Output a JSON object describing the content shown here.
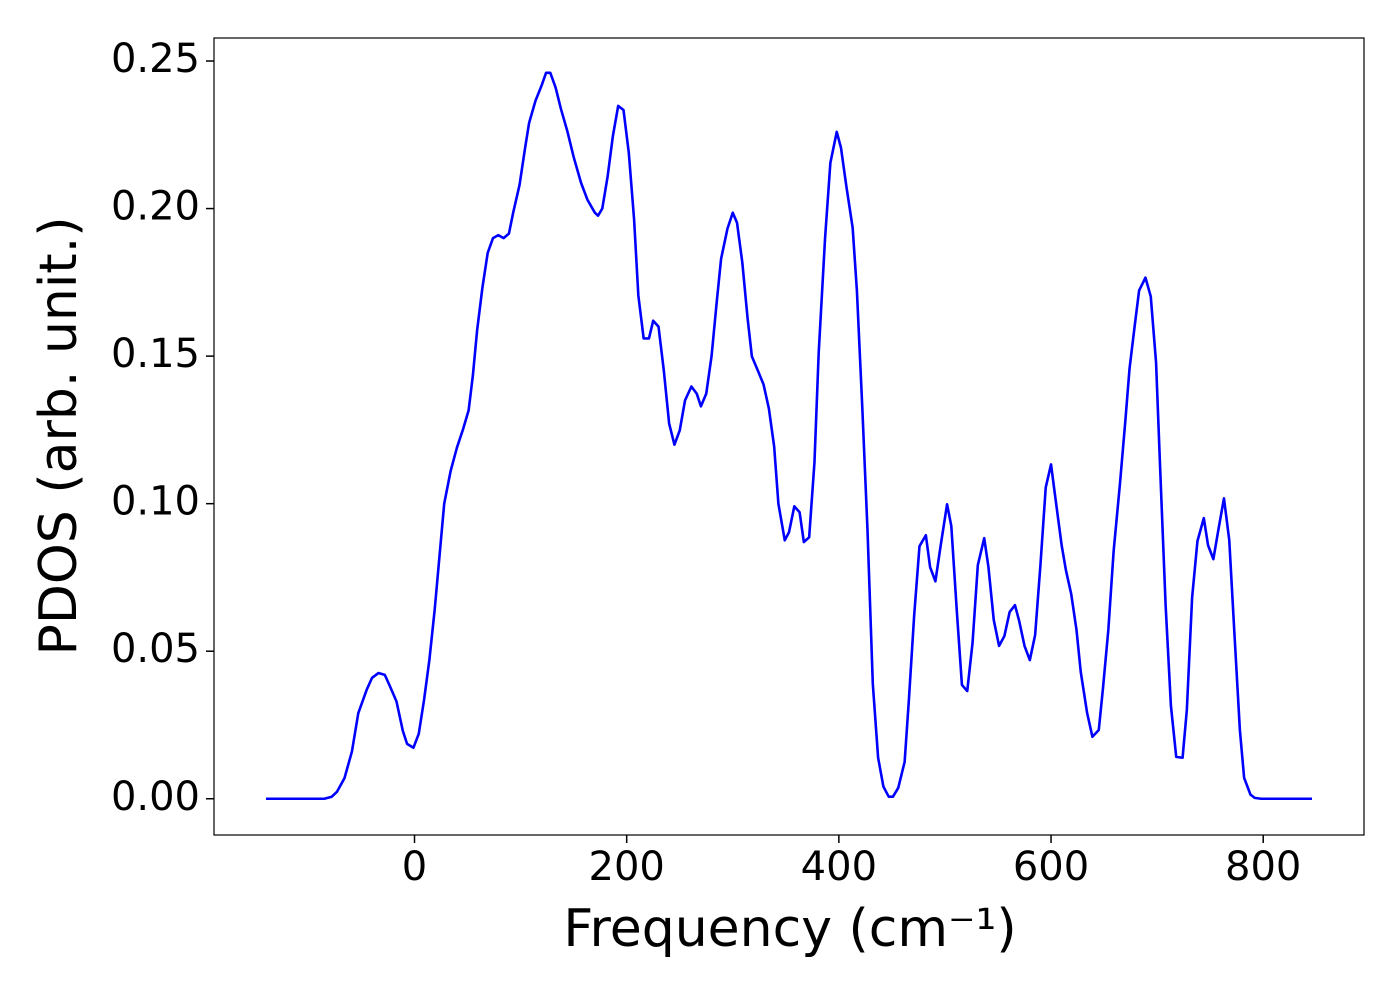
{
  "chart_data": {
    "type": "line",
    "xlabel": "Frequency (cm⁻¹)",
    "ylabel": "PDOS (arb. unit.)",
    "x": [
      -140,
      -120,
      -100,
      -85,
      -78,
      -73,
      -66,
      -59,
      -53,
      -45,
      -40,
      -34,
      -28,
      -23,
      -17,
      -11,
      -7,
      -1,
      4,
      9,
      14,
      19,
      24,
      28,
      34,
      40,
      46,
      51,
      55,
      59,
      64,
      69,
      74,
      79,
      84,
      89,
      93,
      99,
      104,
      108,
      114,
      120,
      124,
      128,
      133,
      138,
      144,
      150,
      157,
      163,
      170,
      173,
      177,
      182,
      187,
      192,
      197,
      202,
      207,
      211,
      216,
      221,
      225,
      230,
      235,
      240,
      245,
      250,
      255,
      261,
      266,
      270,
      275,
      280,
      285,
      289,
      295,
      300,
      304,
      309,
      314,
      318,
      324,
      329,
      334,
      339,
      343,
      349,
      353,
      358,
      363,
      367,
      372,
      377,
      381,
      387,
      392,
      398,
      402,
      407,
      413,
      417,
      422,
      427,
      432,
      437,
      442,
      447,
      451,
      456,
      462,
      466,
      471,
      476,
      482,
      486,
      491,
      496,
      502,
      506,
      511,
      516,
      521,
      526,
      531,
      537,
      541,
      546,
      551,
      556,
      561,
      566,
      570,
      575,
      580,
      585,
      590,
      595,
      600,
      604,
      610,
      614,
      619,
      624,
      628,
      634,
      639,
      645,
      649,
      654,
      659,
      665,
      670,
      674,
      679,
      683,
      689,
      694,
      699,
      703,
      708,
      713,
      718,
      724,
      728,
      733,
      738,
      744,
      748,
      753,
      758,
      763,
      768,
      773,
      778,
      782,
      788,
      792,
      798,
      820,
      846
    ],
    "series": [
      {
        "name": "PDOS",
        "color": "#0000ff",
        "values": [
          0,
          0,
          0,
          0,
          0.0007,
          0.0024,
          0.007,
          0.016,
          0.029,
          0.037,
          0.041,
          0.0426,
          0.042,
          0.038,
          0.033,
          0.023,
          0.0186,
          0.0173,
          0.022,
          0.0335,
          0.047,
          0.064,
          0.084,
          0.1,
          0.111,
          0.119,
          0.1255,
          0.1316,
          0.1434,
          0.1587,
          0.1732,
          0.185,
          0.19,
          0.191,
          0.19,
          0.1915,
          0.1986,
          0.208,
          0.22,
          0.229,
          0.2365,
          0.2419,
          0.246,
          0.246,
          0.241,
          0.2338,
          0.2263,
          0.2175,
          0.2087,
          0.203,
          0.1986,
          0.1976,
          0.2,
          0.2108,
          0.2246,
          0.2348,
          0.2334,
          0.2189,
          0.1962,
          0.1705,
          0.156,
          0.156,
          0.162,
          0.16,
          0.1451,
          0.1272,
          0.12,
          0.1248,
          0.135,
          0.1397,
          0.1373,
          0.133,
          0.1373,
          0.15,
          0.1688,
          0.183,
          0.1932,
          0.1986,
          0.1952,
          0.1817,
          0.1627,
          0.1499,
          0.1448,
          0.1404,
          0.1323,
          0.1194,
          0.1,
          0.0876,
          0.0903,
          0.0991,
          0.0971,
          0.087,
          0.0886,
          0.114,
          0.1512,
          0.19,
          0.2155,
          0.226,
          0.2206,
          0.2077,
          0.1935,
          0.1722,
          0.1333,
          0.091,
          0.0389,
          0.0139,
          0.0041,
          0.0007,
          0.0007,
          0.0037,
          0.0125,
          0.0335,
          0.0622,
          0.0856,
          0.0893,
          0.0785,
          0.0737,
          0.0859,
          0.0998,
          0.0924,
          0.0646,
          0.0386,
          0.0365,
          0.0528,
          0.0792,
          0.0883,
          0.0785,
          0.0606,
          0.0518,
          0.0551,
          0.0633,
          0.0656,
          0.0602,
          0.0518,
          0.047,
          0.0555,
          0.0792,
          0.1055,
          0.1133,
          0.1022,
          0.0859,
          0.0775,
          0.0694,
          0.0572,
          0.043,
          0.0291,
          0.021,
          0.0233,
          0.0376,
          0.0572,
          0.0839,
          0.1069,
          0.1279,
          0.1458,
          0.1607,
          0.1722,
          0.1766,
          0.1702,
          0.1478,
          0.1106,
          0.0656,
          0.0315,
          0.0142,
          0.0139,
          0.0301,
          0.0683,
          0.0873,
          0.0951,
          0.0859,
          0.0812,
          0.0917,
          0.1018,
          0.0876,
          0.0551,
          0.0233,
          0.0071,
          0.0014,
          0.0003,
          0,
          0,
          0
        ]
      }
    ],
    "xlim": [
      -189,
      895
    ],
    "xticks": [
      0,
      200,
      400,
      600,
      800
    ],
    "ylim": [
      -0.01228,
      0.2578
    ],
    "yticks": [
      {
        "value": 0,
        "label": "0.00"
      },
      0.05,
      {
        "value": 0.1,
        "label": "0.10"
      },
      0.15,
      {
        "value": 0.2,
        "label": "0.20"
      },
      0.25
    ]
  }
}
